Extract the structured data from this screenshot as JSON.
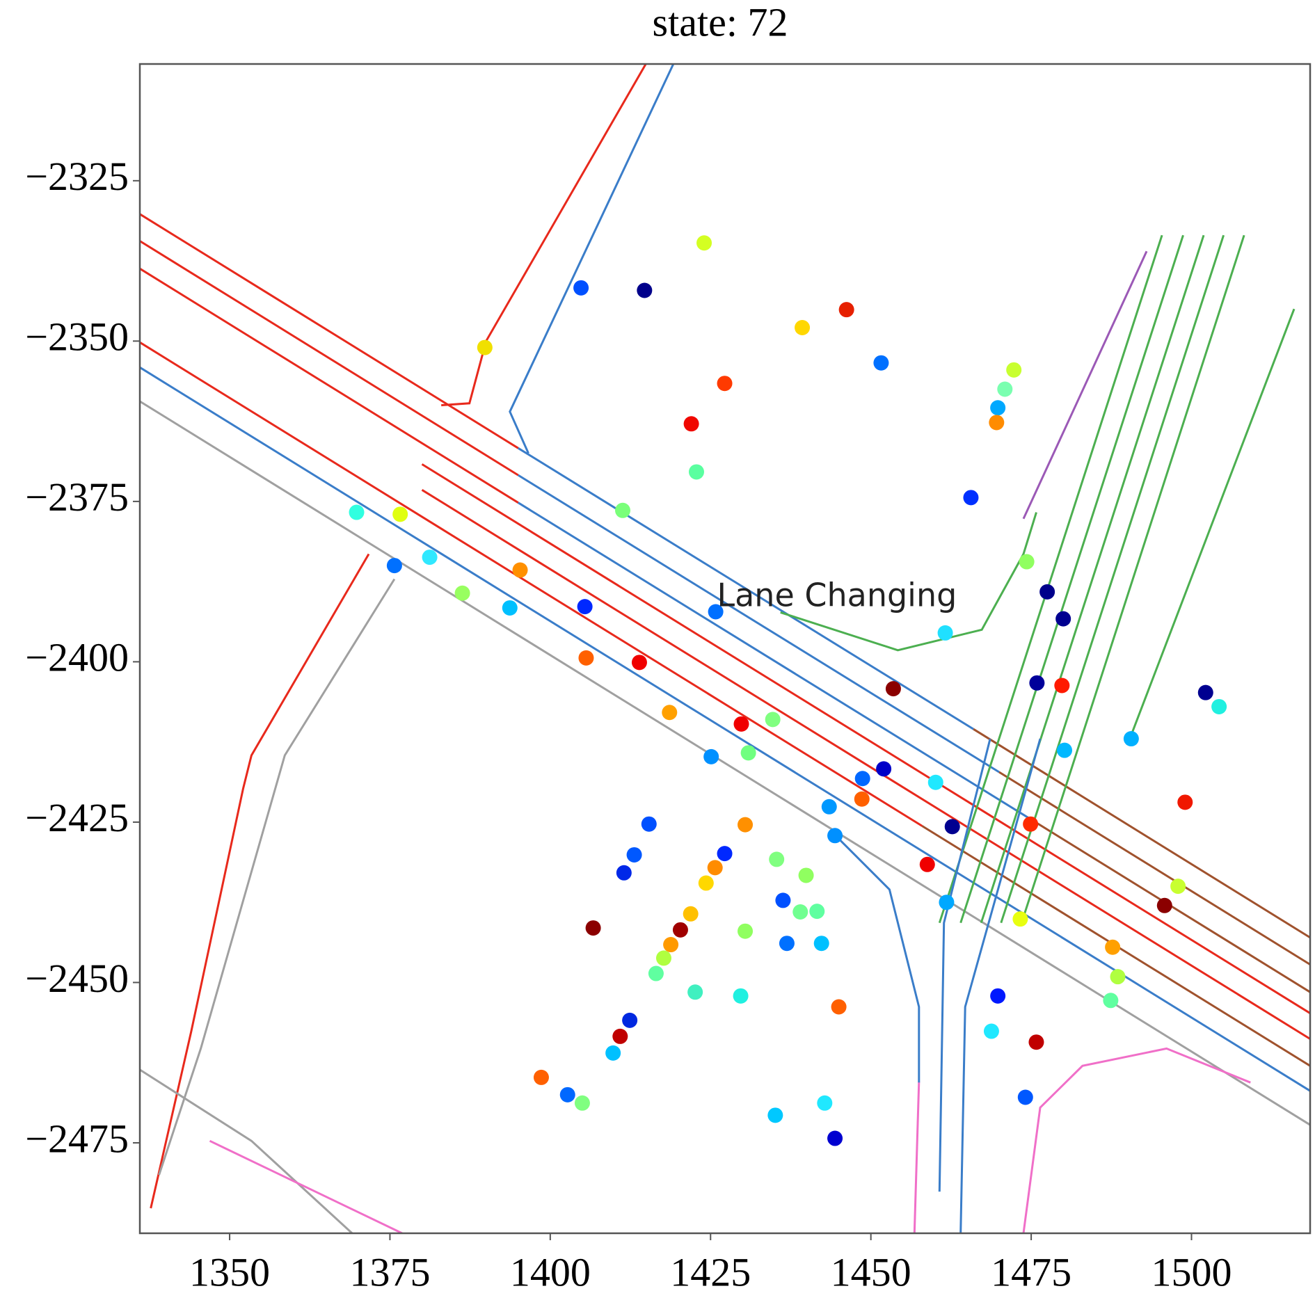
{
  "chart_data": {
    "type": "scatter",
    "title": "state: 72",
    "annotation": {
      "text": "Lane Changing",
      "x": 1426.0,
      "y": -2390.0
    },
    "xlim": [
      1336,
      1518.5
    ],
    "ylim": [
      -2489.1,
      -2306.8
    ],
    "xticks": [
      1350,
      1375,
      1400,
      1425,
      1450,
      1475,
      1500
    ],
    "yticks": [
      {
        "value": -2475,
        "label": "−2475"
      },
      {
        "value": -2450,
        "label": "−2450"
      },
      {
        "value": -2425,
        "label": "−2425"
      },
      {
        "value": -2400,
        "label": "−2400"
      },
      {
        "value": -2375,
        "label": "−2375"
      },
      {
        "value": -2350,
        "label": "−2350"
      },
      {
        "value": -2325,
        "label": "−2325"
      }
    ],
    "lanes": [
      {
        "color": "#e8291c",
        "x": [
          1336,
          1395
        ],
        "y": [
          -2330.2,
          -2366.7
        ]
      },
      {
        "color": "#3a7dc9",
        "x": [
          1395,
          1466
        ],
        "y": [
          -2366.7,
          -2410.5
        ]
      },
      {
        "color": "#a0522d",
        "x": [
          1466,
          1518.5
        ],
        "y": [
          -2410.5,
          -2443.0
        ]
      },
      {
        "color": "#e8291c",
        "x": [
          1336,
          1395
        ],
        "y": [
          -2334.4,
          -2370.9
        ]
      },
      {
        "color": "#3a7dc9",
        "x": [
          1395,
          1470
        ],
        "y": [
          -2370.9,
          -2417.2
        ]
      },
      {
        "color": "#a0522d",
        "x": [
          1470,
          1518.5
        ],
        "y": [
          -2417.2,
          -2447.2
        ]
      },
      {
        "color": "#e8291c",
        "x": [
          1336,
          1395
        ],
        "y": [
          -2338.7,
          -2375.2
        ]
      },
      {
        "color": "#3a7dc9",
        "x": [
          1395,
          1475
        ],
        "y": [
          -2375.2,
          -2424.6
        ]
      },
      {
        "color": "#a0522d",
        "x": [
          1475,
          1518.5
        ],
        "y": [
          -2424.6,
          -2451.5
        ]
      },
      {
        "color": "#e8291c",
        "x": [
          1380,
          1518.5
        ],
        "y": [
          -2369.2,
          -2454.8
        ]
      },
      {
        "color": "#e8291c",
        "x": [
          1380,
          1518.5
        ],
        "y": [
          -2373.2,
          -2458.8
        ]
      },
      {
        "color": "#e8291c",
        "x": [
          1336,
          1458
        ],
        "y": [
          -2350.2,
          -2425.6
        ]
      },
      {
        "color": "#a0522d",
        "x": [
          1458,
          1518.5
        ],
        "y": [
          -2425.6,
          -2463.0
        ]
      },
      {
        "color": "#3a7dc9",
        "x": [
          1336,
          1518.5
        ],
        "y": [
          -2354.1,
          -2466.9
        ]
      },
      {
        "color": "#a0a0a0",
        "x": [
          1336,
          1518.5
        ],
        "y": [
          -2359.4,
          -2472.2
        ]
      },
      {
        "color": "#e8291c",
        "x": [
          1414.9,
          1390,
          1387.4,
          1383
        ],
        "y": [
          -2306.8,
          -2350,
          -2359.7,
          -2360
        ]
      },
      {
        "color": "#3a7dc9",
        "x": [
          1419.2,
          1393.7,
          1396.6
        ],
        "y": [
          -2306.8,
          -2361.0,
          -2367.5
        ]
      },
      {
        "color": "#e8291c",
        "x": [
          1371.7,
          1353.4,
          1352.1,
          1344.0,
          1337.7
        ],
        "y": [
          -2383.2,
          -2414.6,
          -2419.8,
          -2457.7,
          -2485.2
        ]
      },
      {
        "color": "#a0a0a0",
        "x": [
          1375.7,
          1358.6,
          1345.5,
          1339.0
        ],
        "y": [
          -2387.1,
          -2414.6,
          -2460.3,
          -2480.0
        ]
      },
      {
        "color": "#4caf50",
        "x": [
          1460.7,
          1495.4
        ],
        "y": [
          -2440.7,
          -2333.5
        ]
      },
      {
        "color": "#4caf50",
        "x": [
          1464.0,
          1498.7
        ],
        "y": [
          -2440.7,
          -2333.5
        ]
      },
      {
        "color": "#4caf50",
        "x": [
          1467.2,
          1501.9
        ],
        "y": [
          -2440.7,
          -2333.5
        ]
      },
      {
        "color": "#4caf50",
        "x": [
          1470.3,
          1505.0
        ],
        "y": [
          -2440.7,
          -2333.5
        ]
      },
      {
        "color": "#4caf50",
        "x": [
          1473.5,
          1508.2
        ],
        "y": [
          -2440.7,
          -2333.5
        ]
      },
      {
        "color": "#4caf50",
        "x": [
          1490,
          1516
        ],
        "y": [
          -2413,
          -2345
        ]
      },
      {
        "color": "#9b59b6",
        "x": [
          1473.8,
          1493
        ],
        "y": [
          -2377.7,
          -2336
        ]
      },
      {
        "color": "#4caf50",
        "x": [
          1435.9,
          1454.2,
          1467.3,
          1473.8,
          1475.8
        ],
        "y": [
          -2392.3,
          -2398.2,
          -2395.0,
          -2383.2,
          -2376.7
        ]
      },
      {
        "color": "#f06fc8",
        "x": [
          1456.8,
          1457.5
        ],
        "y": [
          -2489.1,
          -2465.5
        ]
      },
      {
        "color": "#f06fc8",
        "x": [
          1473.8,
          1476.4,
          1483.0,
          1496.1,
          1509.2
        ],
        "y": [
          -2489.1,
          -2469.5,
          -2463.0,
          -2460.3,
          -2465.6
        ]
      },
      {
        "color": "#3a7dc9",
        "x": [
          1460.7,
          1461.4,
          1468.6
        ],
        "y": [
          -2482.6,
          -2440.7,
          -2412.0
        ]
      },
      {
        "color": "#3a7dc9",
        "x": [
          1464.0,
          1464.7,
          1476.4
        ],
        "y": [
          -2489.1,
          -2453.8,
          -2412.0
        ]
      },
      {
        "color": "#3a7dc9",
        "x": [
          1443.7,
          1452.9,
          1457.5,
          1457.5
        ],
        "y": [
          -2426.3,
          -2435.5,
          -2453.8,
          -2465.6
        ]
      },
      {
        "color": "#a0a0a0",
        "x": [
          1336,
          1353.4,
          1369.1
        ],
        "y": [
          -2463.6,
          -2474.7,
          -2489.1
        ]
      },
      {
        "color": "#f06fc8",
        "x": [
          1346.9,
          1376.9
        ],
        "y": [
          -2474.7,
          -2489.1
        ]
      }
    ],
    "x": [
      1389.8,
      1404.8,
      1414.7,
      1424.0,
      1439.3,
      1446.2,
      1451.6,
      1427.2,
      1422.0,
      1422.8,
      1472.3,
      1470.9,
      1469.8,
      1469.6,
      1465.6,
      1411.3,
      1369.8,
      1376.6,
      1375.7,
      1381.2,
      1395.3,
      1386.3,
      1393.7,
      1405.4,
      1425.8,
      1474.3,
      1477.5,
      1480.0,
      1461.6,
      1405.6,
      1413.9,
      1453.5,
      1475.9,
      1479.8,
      1502.2,
      1504.3,
      1418.6,
      1429.8,
      1434.7,
      1425.1,
      1430.9,
      1480.2,
      1490.6,
      1452.0,
      1448.7,
      1460.1,
      1448.6,
      1443.5,
      1462.7,
      1474.9,
      1499.0,
      1415.4,
      1430.4,
      1444.4,
      1413.1,
      1427.2,
      1411.5,
      1425.7,
      1435.3,
      1439.9,
      1458.8,
      1424.3,
      1497.9,
      1436.3,
      1461.8,
      1495.8,
      1439.0,
      1441.6,
      1421.9,
      1406.7,
      1420.3,
      1473.3,
      1418.8,
      1430.4,
      1436.9,
      1442.3,
      1487.7,
      1417.7,
      1416.5,
      1488.5,
      1422.6,
      1429.7,
      1469.8,
      1487.4,
      1445.0,
      1412.4,
      1410.9,
      1409.8,
      1468.8,
      1475.8,
      1398.6,
      1402.7,
      1405.0,
      1474.1,
      1435.1,
      1442.8,
      1444.4
    ],
    "values": [
      -2351.0,
      -2341.7,
      -2342.1,
      -2334.7,
      -2347.9,
      -2345.1,
      -2353.4,
      -2356.6,
      -2362.9,
      -2370.4,
      -2354.5,
      -2357.5,
      -2360.4,
      -2362.7,
      -2374.4,
      -2376.4,
      -2376.7,
      -2377.0,
      -2385.0,
      -2383.7,
      -2385.7,
      -2389.3,
      -2391.6,
      -2391.4,
      -2392.2,
      -2384.4,
      -2389.1,
      -2393.3,
      -2395.5,
      -2399.4,
      -2400.1,
      -2404.2,
      -2403.3,
      -2403.7,
      -2404.8,
      -2407.0,
      -2407.9,
      -2409.7,
      -2409.0,
      -2414.8,
      -2414.2,
      -2413.8,
      -2412.0,
      -2416.7,
      -2418.2,
      -2418.8,
      -2421.4,
      -2422.6,
      -2425.7,
      -2425.3,
      -2421.9,
      -2425.3,
      -2425.4,
      -2427.1,
      -2430.1,
      -2429.9,
      -2432.9,
      -2432.1,
      -2430.8,
      -2433.3,
      -2431.6,
      -2434.5,
      -2435.0,
      -2437.2,
      -2437.5,
      -2438.0,
      -2439.0,
      -2438.9,
      -2439.3,
      -2441.5,
      -2441.8,
      -2440.1,
      -2444.1,
      -2442.0,
      -2443.9,
      -2443.9,
      -2444.5,
      -2446.2,
      -2448.6,
      -2449.1,
      -2451.5,
      -2452.1,
      -2452.1,
      -2452.8,
      -2453.8,
      -2455.9,
      -2458.4,
      -2461.0,
      -2457.6,
      -2459.3,
      -2464.8,
      -2467.5,
      -2468.8,
      -2467.9,
      -2470.7,
      -2468.8,
      -2474.3
    ],
    "colors": [
      "#f0e000",
      "#0050ff",
      "#00008b",
      "#d4ff22",
      "#ffd700",
      "#e62000",
      "#0070ff",
      "#ff3a00",
      "#f00800",
      "#5affa0",
      "#c8ff30",
      "#7affb0",
      "#00a8ff",
      "#ff8c00",
      "#0030ff",
      "#7aff7a",
      "#30ffe0",
      "#e0ff10",
      "#0070ff",
      "#30e8ff",
      "#ff9000",
      "#98ff60",
      "#00c0ff",
      "#0028ff",
      "#0070ff",
      "#90ff60",
      "#00008b",
      "#000090",
      "#20e0ff",
      "#ff6000",
      "#f00000",
      "#8b0000",
      "#00009a",
      "#ff1a00",
      "#000090",
      "#20f0e0",
      "#ffa000",
      "#f00000",
      "#80ff80",
      "#0090ff",
      "#70ff80",
      "#00b8ff",
      "#00b0ff",
      "#0000c8",
      "#0068ff",
      "#20e8ff",
      "#ff6000",
      "#0098ff",
      "#000090",
      "#ff2a00",
      "#f01800",
      "#0050ff",
      "#ff9000",
      "#0090ff",
      "#0058ff",
      "#0028ff",
      "#0028e8",
      "#ff8c00",
      "#80ff80",
      "#90ff60",
      "#f00000",
      "#ffd800",
      "#c8ff30",
      "#0050ff",
      "#00a8ff",
      "#8b0000",
      "#70ff90",
      "#60ffa0",
      "#ffc000",
      "#8b0000",
      "#a00000",
      "#e8ff10",
      "#ff9a00",
      "#90ff60",
      "#0070ff",
      "#00c0ff",
      "#ffa000",
      "#b0ff40",
      "#60ffa0",
      "#b0ff40",
      "#40f0c0",
      "#20f0e0",
      "#0018ff",
      "#60ffa0",
      "#ff6000",
      "#0028e0",
      "#c00000",
      "#00c0ff",
      "#20e8ff",
      "#c00000",
      "#ff6000",
      "#0068ff",
      "#80ff80",
      "#0058ff",
      "#00c8ff",
      "#20e8ff",
      "#0000d0"
    ]
  }
}
